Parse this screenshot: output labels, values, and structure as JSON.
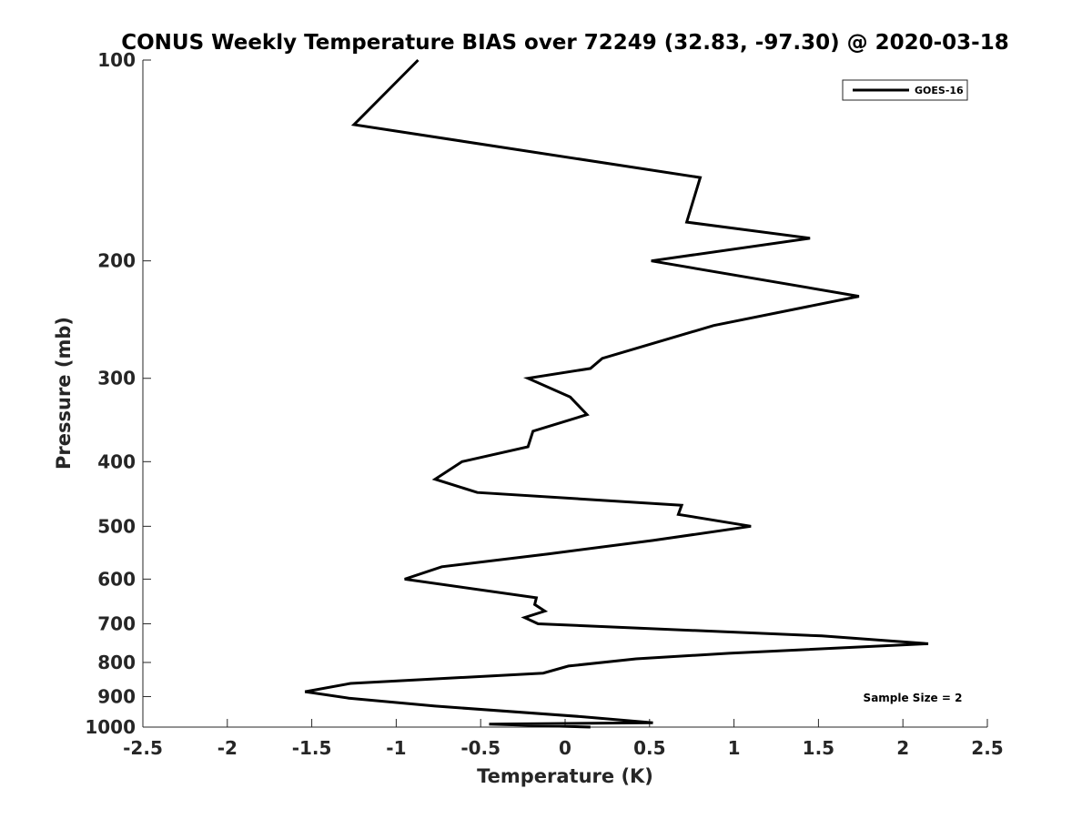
{
  "chart_data": {
    "type": "line",
    "title": "CONUS Weekly Temperature BIAS over 72249 (32.83, -97.30) @ 2020-03-18",
    "xlabel": "Temperature (K)",
    "ylabel": "Pressure (mb)",
    "xlim": [
      -2.5,
      2.5
    ],
    "ylim": [
      1000,
      100
    ],
    "y_scale": "log",
    "y_reversed": true,
    "x_ticks": [
      "-2.5",
      "-2",
      "-1.5",
      "-1",
      "-0.5",
      "0",
      "0.5",
      "1",
      "1.5",
      "2",
      "2.5"
    ],
    "y_ticks": [
      "100",
      "200",
      "300",
      "400",
      "500",
      "600",
      "700",
      "800",
      "900",
      "1000"
    ],
    "grid": false,
    "legend_position": "top-right",
    "annotation": "Sample Size = 2",
    "series": [
      {
        "name": "GOES-16",
        "color": "#000000",
        "points": [
          [
            -0.87,
            100
          ],
          [
            -1.25,
            125
          ],
          [
            0.8,
            150
          ],
          [
            0.72,
            175
          ],
          [
            1.45,
            185
          ],
          [
            0.51,
            200
          ],
          [
            1.74,
            226
          ],
          [
            0.88,
            250
          ],
          [
            0.22,
            280
          ],
          [
            0.15,
            290
          ],
          [
            -0.22,
            300
          ],
          [
            0.03,
            320
          ],
          [
            0.13,
            340
          ],
          [
            -0.19,
            360
          ],
          [
            -0.22,
            380
          ],
          [
            -0.61,
            400
          ],
          [
            -0.77,
            425
          ],
          [
            -0.52,
            445
          ],
          [
            0.69,
            465
          ],
          [
            0.67,
            480
          ],
          [
            1.1,
            500
          ],
          [
            0.52,
            525
          ],
          [
            -0.1,
            550
          ],
          [
            -0.73,
            575
          ],
          [
            -0.95,
            600
          ],
          [
            -0.17,
            640
          ],
          [
            -0.18,
            655
          ],
          [
            -0.12,
            670
          ],
          [
            -0.24,
            685
          ],
          [
            -0.16,
            700
          ],
          [
            1.52,
            730
          ],
          [
            2.15,
            750
          ],
          [
            0.97,
            775
          ],
          [
            0.42,
            790
          ],
          [
            0.02,
            810
          ],
          [
            -0.13,
            830
          ],
          [
            -1.27,
            860
          ],
          [
            -1.54,
            885
          ],
          [
            -1.28,
            905
          ],
          [
            -0.77,
            930
          ],
          [
            0.11,
            965
          ],
          [
            0.52,
            985
          ],
          [
            -0.45,
            990
          ],
          [
            0.15,
            1000
          ]
        ]
      }
    ]
  }
}
